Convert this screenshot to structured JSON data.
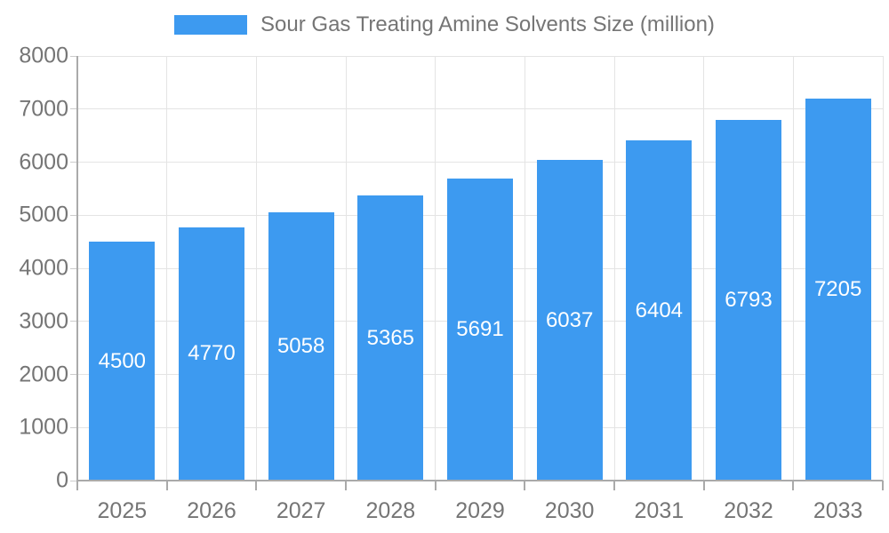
{
  "chart_data": {
    "type": "bar",
    "title": "Sour Gas Treating Amine Solvents Size (million)",
    "categories": [
      "2025",
      "2026",
      "2027",
      "2028",
      "2029",
      "2030",
      "2031",
      "2032",
      "2033"
    ],
    "values": [
      4500,
      4770,
      5058,
      5365,
      5691,
      6037,
      6404,
      6793,
      7205
    ],
    "xlabel": "",
    "ylabel": "",
    "ylim": [
      0,
      8000
    ],
    "y_ticks": [
      0,
      1000,
      2000,
      3000,
      4000,
      5000,
      6000,
      7000,
      8000
    ],
    "grid": true,
    "legend_position": "top-center",
    "value_labels": "inside-center",
    "colors": {
      "bar": "#3D9AF0",
      "value_label": "#FFFFFF",
      "axis_label": "#757575",
      "gridline": "#E4E4E4",
      "axis_line": "#AAAAAA",
      "background": "#FFFFFF"
    }
  }
}
